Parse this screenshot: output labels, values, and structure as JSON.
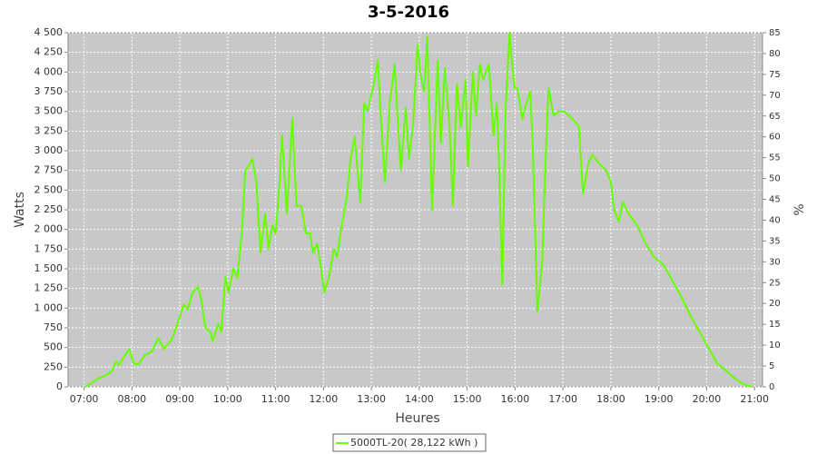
{
  "chart_data": {
    "type": "line",
    "title": "3-5-2016",
    "x_label": "Heures",
    "y_label": "Watts",
    "y2_label": "%",
    "x": [
      "07:02",
      "07:08",
      "07:17",
      "07:28",
      "07:35",
      "07:40",
      "07:44",
      "07:50",
      "07:57",
      "08:02",
      "08:08",
      "08:16",
      "08:25",
      "08:33",
      "08:40",
      "08:50",
      "08:57",
      "09:05",
      "09:10",
      "09:16",
      "09:23",
      "09:27",
      "09:32",
      "09:38",
      "09:41",
      "09:48",
      "09:52",
      "09:57",
      "10:01",
      "10:07",
      "10:12",
      "10:18",
      "10:22",
      "10:26",
      "10:31",
      "10:36",
      "10:41",
      "10:47",
      "10:51",
      "10:56",
      "11:00",
      "11:05",
      "11:08",
      "11:14",
      "11:21",
      "11:26",
      "11:32",
      "11:38",
      "11:43",
      "11:47",
      "11:52",
      "11:57",
      "12:01",
      "12:07",
      "12:13",
      "12:17",
      "12:22",
      "12:29",
      "12:34",
      "12:39",
      "12:46",
      "12:51",
      "12:55",
      "13:02",
      "13:08",
      "13:12",
      "13:17",
      "13:23",
      "13:29",
      "13:33",
      "13:37",
      "13:43",
      "13:47",
      "13:52",
      "13:58",
      "14:01",
      "14:06",
      "14:10",
      "14:16",
      "14:23",
      "14:27",
      "14:32",
      "14:38",
      "14:42",
      "14:47",
      "14:52",
      "14:58",
      "15:01",
      "15:07",
      "15:11",
      "15:16",
      "15:20",
      "15:27",
      "15:33",
      "15:37",
      "15:40",
      "15:44",
      "15:48",
      "15:53",
      "15:59",
      "16:03",
      "16:09",
      "16:14",
      "16:19",
      "16:22",
      "16:28",
      "16:34",
      "16:39",
      "16:42",
      "16:48",
      "16:55",
      "17:02",
      "17:12",
      "17:17",
      "17:20",
      "17:25",
      "17:32",
      "17:37",
      "17:44",
      "17:54",
      "18:00",
      "18:04",
      "18:10",
      "18:15",
      "18:22",
      "18:33",
      "18:42",
      "18:54",
      "19:06",
      "19:17",
      "19:28",
      "19:40",
      "19:51",
      "20:02",
      "20:13",
      "20:25",
      "20:36",
      "20:47",
      "20:57"
    ],
    "series": [
      {
        "name": "5000TL-20( 28,122 kWh )",
        "color": "#66ff00",
        "values": [
          0,
          40,
          100,
          150,
          200,
          320,
          280,
          380,
          480,
          300,
          280,
          400,
          450,
          620,
          480,
          600,
          800,
          1050,
          980,
          1200,
          1270,
          1100,
          750,
          700,
          580,
          800,
          700,
          1400,
          1200,
          1500,
          1380,
          2000,
          2750,
          2800,
          2900,
          2600,
          1700,
          2200,
          1750,
          2050,
          1950,
          2600,
          3200,
          2200,
          3420,
          2300,
          2300,
          1950,
          1950,
          1700,
          1820,
          1500,
          1200,
          1400,
          1750,
          1650,
          2000,
          2400,
          2900,
          3180,
          2350,
          3600,
          3500,
          3800,
          4150,
          3400,
          2600,
          3600,
          4100,
          3400,
          2750,
          3550,
          2900,
          3300,
          4350,
          4000,
          3750,
          4450,
          2250,
          4150,
          3100,
          4050,
          3300,
          2300,
          3850,
          3300,
          3900,
          2800,
          4000,
          3450,
          4100,
          3900,
          4100,
          3200,
          3600,
          2800,
          1300,
          3500,
          4500,
          3800,
          3800,
          3400,
          3600,
          3750,
          3100,
          950,
          1600,
          3100,
          3800,
          3450,
          3500,
          3500,
          3400,
          3350,
          3300,
          2450,
          2850,
          2950,
          2850,
          2750,
          2600,
          2250,
          2100,
          2350,
          2200,
          2050,
          1850,
          1650,
          1550,
          1350,
          1150,
          900,
          700,
          500,
          300,
          200,
          100,
          30,
          0
        ]
      }
    ],
    "xlim": [
      "06:40",
      "21:10"
    ],
    "xticks": [
      "07:00",
      "08:00",
      "09:00",
      "10:00",
      "11:00",
      "12:00",
      "13:00",
      "14:00",
      "15:00",
      "16:00",
      "17:00",
      "18:00",
      "19:00",
      "20:00",
      "21:00"
    ],
    "ylim": [
      0,
      4500
    ],
    "yticks": [
      0,
      250,
      500,
      750,
      {
        "value": 1000,
        "label": "1 000"
      },
      {
        "value": 1250,
        "label": "1 250"
      },
      {
        "value": 1500,
        "label": "1 500"
      },
      {
        "value": 1750,
        "label": "1 750"
      },
      {
        "value": 2000,
        "label": "2 000"
      },
      {
        "value": 2250,
        "label": "2 250"
      },
      {
        "value": 2500,
        "label": "2 500"
      },
      {
        "value": 2750,
        "label": "2 750"
      },
      {
        "value": 3000,
        "label": "3 000"
      },
      {
        "value": 3250,
        "label": "3 250"
      },
      {
        "value": 3500,
        "label": "3 500"
      },
      {
        "value": 3750,
        "label": "3 750"
      },
      {
        "value": 4000,
        "label": "4 000"
      },
      {
        "value": 4250,
        "label": "4 250"
      },
      {
        "value": 4500,
        "label": "4 500"
      }
    ],
    "y2lim": [
      0,
      85
    ],
    "y2ticks": [
      0,
      5,
      10,
      15,
      20,
      25,
      30,
      35,
      40,
      45,
      50,
      55,
      60,
      65,
      70,
      75,
      80,
      85
    ],
    "grid": true,
    "plot_background": "#c8c8c8",
    "legend": "bottom"
  }
}
